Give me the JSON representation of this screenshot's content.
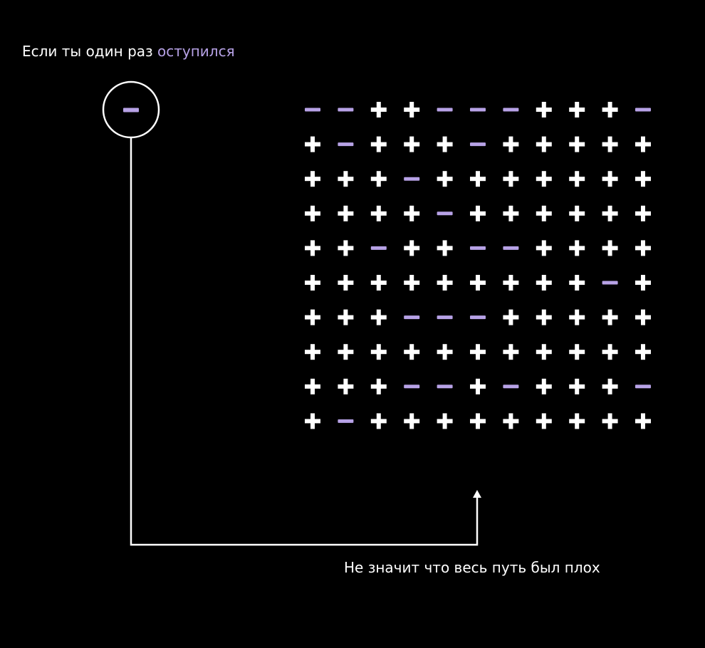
{
  "headline": {
    "lead": "Если ты один раз",
    "accent": "оступился"
  },
  "caption": "Не значит что весь путь был плох",
  "symbols": {
    "plus": "+",
    "minus": "−"
  },
  "colors": {
    "background": "#000000",
    "plus": "#ffffff",
    "minus": "#b7a2e6",
    "line": "#ffffff",
    "text": "#ffffff",
    "accent": "#b7a2e6"
  },
  "highlight": {
    "symbol": "minus"
  },
  "grid": {
    "rows": [
      [
        "-",
        "-",
        "+",
        "+",
        "-",
        "-",
        "-",
        "+",
        "+",
        "+",
        "-"
      ],
      [
        "+",
        "-",
        "+",
        "+",
        "+",
        "-",
        "+",
        "+",
        "+",
        "+",
        "+"
      ],
      [
        "+",
        "+",
        "+",
        "-",
        "+",
        "+",
        "+",
        "+",
        "+",
        "+",
        "+"
      ],
      [
        "+",
        "+",
        "+",
        "+",
        "-",
        "+",
        "+",
        "+",
        "+",
        "+",
        "+"
      ],
      [
        "+",
        "+",
        "-",
        "+",
        "+",
        "-",
        "-",
        "+",
        "+",
        "+",
        "+"
      ],
      [
        "+",
        "+",
        "+",
        "+",
        "+",
        "+",
        "+",
        "+",
        "+",
        "-",
        "+"
      ],
      [
        "+",
        "+",
        "+",
        "-",
        "-",
        "-",
        "+",
        "+",
        "+",
        "+",
        "+"
      ],
      [
        "+",
        "+",
        "+",
        "+",
        "+",
        "+",
        "+",
        "+",
        "+",
        "+",
        "+"
      ],
      [
        "+",
        "+",
        "+",
        "-",
        "-",
        "+",
        "-",
        "+",
        "+",
        "+",
        "-"
      ],
      [
        "+",
        "-",
        "+",
        "+",
        "+",
        "+",
        "+",
        "+",
        "+",
        "+",
        "+"
      ]
    ]
  }
}
